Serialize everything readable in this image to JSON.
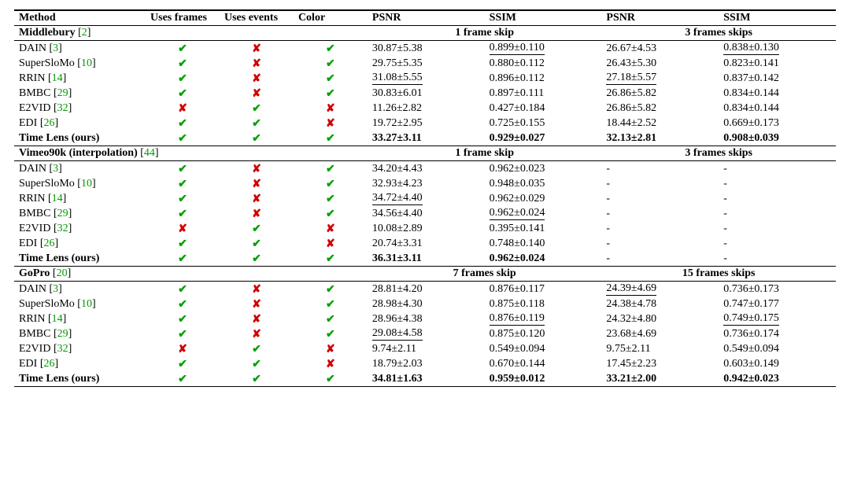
{
  "headers": {
    "method": "Method",
    "uses_frames": "Uses frames",
    "uses_events": "Uses events",
    "color": "Color",
    "psnr": "PSNR",
    "ssim": "SSIM"
  },
  "glyphs": {
    "yes": "✔",
    "no": "✘"
  },
  "colors": {
    "cite": "#009a00",
    "yes": "#00a000",
    "no": "#d00000"
  },
  "methods": [
    {
      "name": "DAIN",
      "cite": "3"
    },
    {
      "name": "SuperSloMo",
      "cite": "10"
    },
    {
      "name": "RRIN",
      "cite": "14"
    },
    {
      "name": "BMBC",
      "cite": "29"
    },
    {
      "name": "E2VID",
      "cite": "32"
    },
    {
      "name": "EDI",
      "cite": "26"
    },
    {
      "name": "Time Lens (ours)",
      "cite": "",
      "bold": true
    }
  ],
  "flags": {
    "uses_frames": [
      "y",
      "y",
      "y",
      "y",
      "n",
      "y",
      "y"
    ],
    "uses_events": [
      "n",
      "n",
      "n",
      "n",
      "y",
      "y",
      "y"
    ],
    "color": [
      "y",
      "y",
      "y",
      "y",
      "n",
      "n",
      "y"
    ]
  },
  "sections": [
    {
      "title": "Middlebury",
      "title_cite": "2",
      "skip_a_label": "1 frame skip",
      "skip_b_label": "3 frames skips",
      "rows": [
        {
          "a_psnr": {
            "v": "30.87±5.38"
          },
          "a_ssim": {
            "v": "0.899±0.110",
            "u": true
          },
          "b_psnr": {
            "v": "26.67±4.53"
          },
          "b_ssim": {
            "v": "0.838±0.130",
            "u": true
          }
        },
        {
          "a_psnr": {
            "v": "29.75±5.35"
          },
          "a_ssim": {
            "v": "0.880±0.112"
          },
          "b_psnr": {
            "v": "26.43±5.30"
          },
          "b_ssim": {
            "v": "0.823±0.141"
          }
        },
        {
          "a_psnr": {
            "v": "31.08±5.55",
            "u": true
          },
          "a_ssim": {
            "v": "0.896±0.112"
          },
          "b_psnr": {
            "v": "27.18±5.57",
            "u": true
          },
          "b_ssim": {
            "v": "0.837±0.142"
          }
        },
        {
          "a_psnr": {
            "v": "30.83±6.01"
          },
          "a_ssim": {
            "v": "0.897±0.111"
          },
          "b_psnr": {
            "v": "26.86±5.82"
          },
          "b_ssim": {
            "v": "0.834±0.144"
          }
        },
        {
          "a_psnr": {
            "v": "11.26±2.82"
          },
          "a_ssim": {
            "v": "0.427±0.184"
          },
          "b_psnr": {
            "v": "26.86±5.82"
          },
          "b_ssim": {
            "v": "0.834±0.144"
          }
        },
        {
          "a_psnr": {
            "v": "19.72±2.95"
          },
          "a_ssim": {
            "v": "0.725±0.155"
          },
          "b_psnr": {
            "v": "18.44±2.52"
          },
          "b_ssim": {
            "v": "0.669±0.173"
          }
        },
        {
          "a_psnr": {
            "v": "33.27±3.11",
            "b": true
          },
          "a_ssim": {
            "v": "0.929±0.027",
            "b": true
          },
          "b_psnr": {
            "v": "32.13±2.81",
            "b": true
          },
          "b_ssim": {
            "v": "0.908±0.039",
            "b": true
          }
        }
      ]
    },
    {
      "title": "Vimeo90k (interpolation)",
      "title_cite": "44",
      "skip_a_label": "1 frame skip",
      "skip_b_label": "3 frames skips",
      "rows": [
        {
          "a_psnr": {
            "v": "34.20±4.43"
          },
          "a_ssim": {
            "v": "0.962±0.023"
          },
          "b_psnr": {
            "v": "-"
          },
          "b_ssim": {
            "v": "-"
          }
        },
        {
          "a_psnr": {
            "v": "32.93±4.23"
          },
          "a_ssim": {
            "v": "0.948±0.035"
          },
          "b_psnr": {
            "v": "-"
          },
          "b_ssim": {
            "v": "-"
          }
        },
        {
          "a_psnr": {
            "v": "34.72±4.40",
            "u": true
          },
          "a_ssim": {
            "v": "0.962±0.029"
          },
          "b_psnr": {
            "v": "-"
          },
          "b_ssim": {
            "v": "-"
          }
        },
        {
          "a_psnr": {
            "v": "34.56±4.40"
          },
          "a_ssim": {
            "v": "0.962±0.024",
            "u": true
          },
          "b_psnr": {
            "v": "-"
          },
          "b_ssim": {
            "v": "-"
          }
        },
        {
          "a_psnr": {
            "v": "10.08±2.89"
          },
          "a_ssim": {
            "v": "0.395±0.141"
          },
          "b_psnr": {
            "v": "-"
          },
          "b_ssim": {
            "v": "-"
          }
        },
        {
          "a_psnr": {
            "v": "20.74±3.31"
          },
          "a_ssim": {
            "v": "0.748±0.140"
          },
          "b_psnr": {
            "v": "-"
          },
          "b_ssim": {
            "v": "-"
          }
        },
        {
          "a_psnr": {
            "v": "36.31±3.11",
            "b": true
          },
          "a_ssim": {
            "v": "0.962±0.024",
            "b": true
          },
          "b_psnr": {
            "v": "-"
          },
          "b_ssim": {
            "v": "-"
          }
        }
      ]
    },
    {
      "title": "GoPro",
      "title_cite": "20",
      "skip_a_label": "7 frames skip",
      "skip_b_label": "15 frames skips",
      "rows": [
        {
          "a_psnr": {
            "v": "28.81±4.20"
          },
          "a_ssim": {
            "v": "0.876±0.117"
          },
          "b_psnr": {
            "v": "24.39±4.69",
            "u": true
          },
          "b_ssim": {
            "v": "0.736±0.173"
          }
        },
        {
          "a_psnr": {
            "v": "28.98±4.30"
          },
          "a_ssim": {
            "v": "0.875±0.118"
          },
          "b_psnr": {
            "v": "24.38±4.78"
          },
          "b_ssim": {
            "v": "0.747±0.177"
          }
        },
        {
          "a_psnr": {
            "v": "28.96±4.38"
          },
          "a_ssim": {
            "v": "0.876±0.119",
            "u": true
          },
          "b_psnr": {
            "v": "24.32±4.80"
          },
          "b_ssim": {
            "v": "0.749±0.175",
            "u": true
          }
        },
        {
          "a_psnr": {
            "v": "29.08±4.58",
            "u": true
          },
          "a_ssim": {
            "v": "0.875±0.120"
          },
          "b_psnr": {
            "v": "23.68±4.69"
          },
          "b_ssim": {
            "v": "0.736±0.174"
          }
        },
        {
          "a_psnr": {
            "v": "9.74±2.11"
          },
          "a_ssim": {
            "v": "0.549±0.094"
          },
          "b_psnr": {
            "v": "9.75±2.11"
          },
          "b_ssim": {
            "v": "0.549±0.094"
          }
        },
        {
          "a_psnr": {
            "v": "18.79±2.03"
          },
          "a_ssim": {
            "v": "0.670±0.144"
          },
          "b_psnr": {
            "v": "17.45±2.23"
          },
          "b_ssim": {
            "v": "0.603±0.149"
          }
        },
        {
          "a_psnr": {
            "v": "34.81±1.63",
            "b": true
          },
          "a_ssim": {
            "v": "0.959±0.012",
            "b": true
          },
          "b_psnr": {
            "v": "33.21±2.00",
            "b": true
          },
          "b_ssim": {
            "v": "0.942±0.023",
            "b": true
          }
        }
      ]
    }
  ]
}
